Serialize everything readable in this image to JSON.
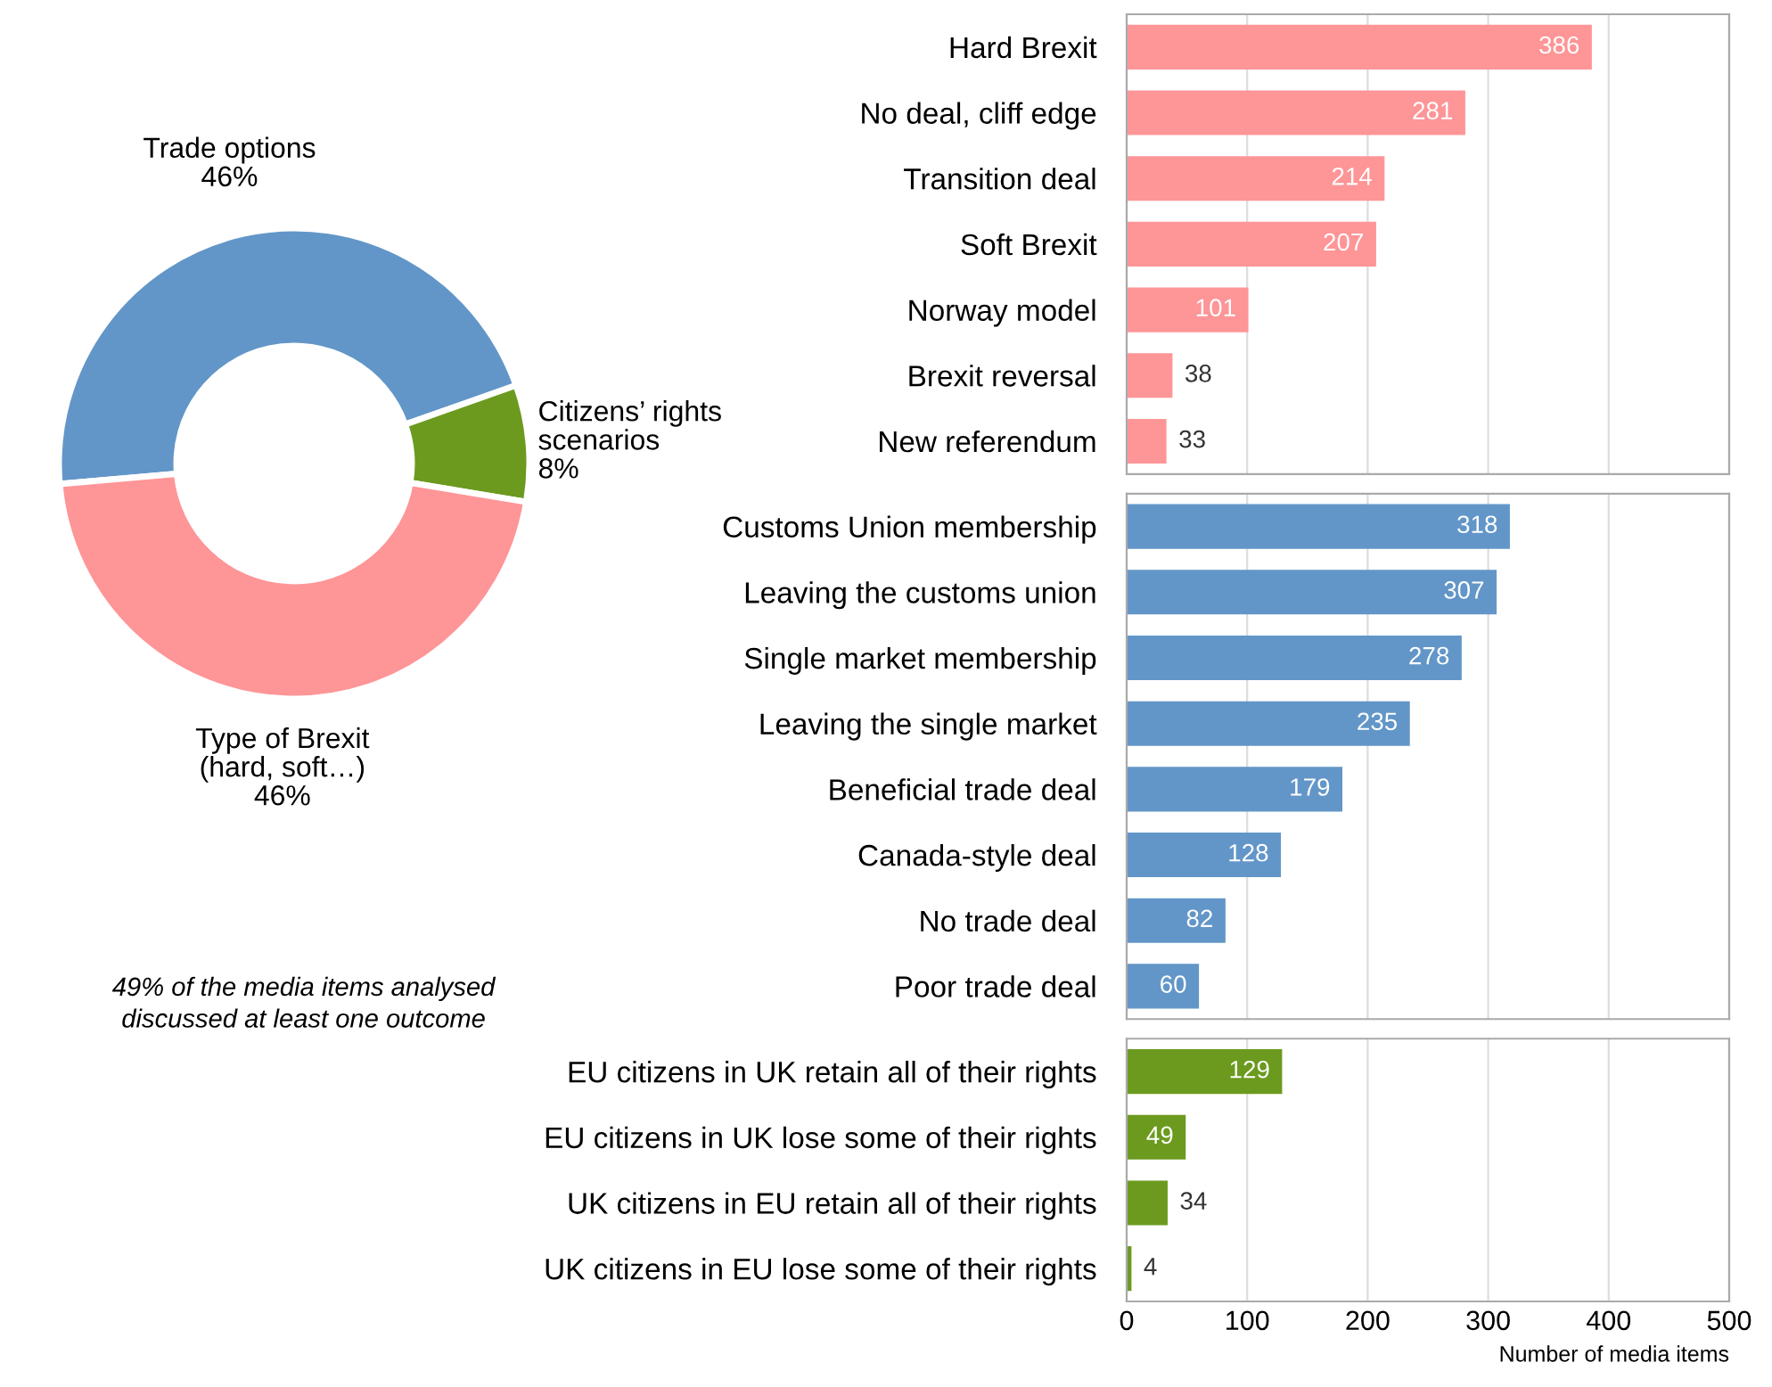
{
  "chart_data": [
    {
      "type": "donut",
      "categories": [
        "Trade options",
        "Citizens’ rights\nscenarios",
        "Type of Brexit\n(hard, soft…)"
      ],
      "values": [
        46,
        8,
        46
      ],
      "colors": [
        "#6396c8",
        "#6b9a1f",
        "#fe9597"
      ],
      "value_labels": [
        "46%",
        "8%",
        "46%"
      ],
      "annotations": [
        "49% of the media items analysed\ndiscussed at least one outcome"
      ]
    },
    {
      "type": "bar",
      "orientation": "horizontal",
      "categories": [
        "Hard Brexit",
        "No deal, cliff edge",
        "Transition deal",
        "Soft Brexit",
        "Norway model",
        "Brexit reversal",
        "New referendum"
      ],
      "values": [
        386,
        281,
        214,
        207,
        101,
        38,
        33
      ],
      "color": "#fe9597",
      "xlim": [
        0,
        500
      ],
      "xticks": [
        0,
        100,
        200,
        300,
        400,
        500
      ],
      "grid": "x",
      "data_labels": true,
      "tick_labels": "y"
    },
    {
      "type": "bar",
      "orientation": "horizontal",
      "categories": [
        "Customs Union membership",
        "Leaving the customs union",
        "Single market membership",
        "Leaving the single market",
        "Beneficial trade deal",
        "Canada-style deal",
        "No trade deal",
        "Poor trade deal"
      ],
      "values": [
        318,
        307,
        278,
        235,
        179,
        128,
        82,
        60
      ],
      "color": "#6396c8",
      "xlim": [
        0,
        500
      ],
      "xticks": [
        0,
        100,
        200,
        300,
        400,
        500
      ],
      "grid": "x",
      "data_labels": true,
      "tick_labels": "y"
    },
    {
      "type": "bar",
      "orientation": "horizontal",
      "categories": [
        "EU citizens in UK retain all of their rights",
        "EU citizens in UK lose some of their rights",
        "UK citizens in EU retain all of their rights",
        "UK citizens in EU lose some of their rights"
      ],
      "values": [
        129,
        49,
        34,
        4
      ],
      "color": "#6b9a1f",
      "xlim": [
        0,
        500
      ],
      "xticks": [
        0,
        100,
        200,
        300,
        400,
        500
      ],
      "grid": "x",
      "data_labels": true,
      "xlabel": "Number of media items"
    }
  ]
}
